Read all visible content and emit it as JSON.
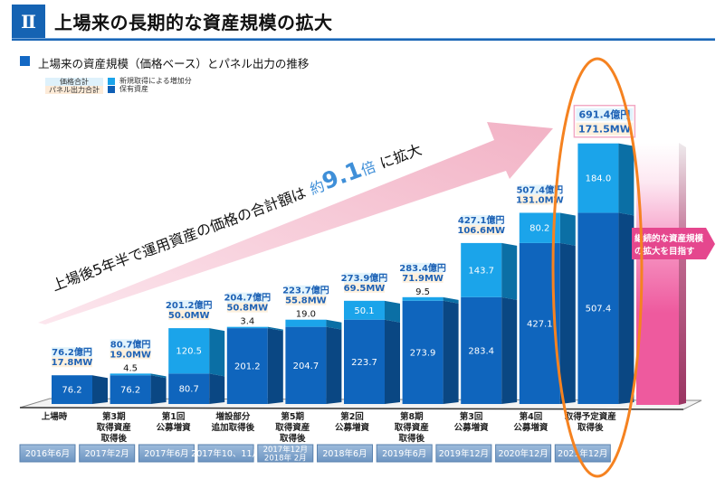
{
  "header": {
    "section_number": "Ⅱ",
    "title": "上場来の長期的な資産規模の拡大"
  },
  "legend": {
    "price_total": "価格合計",
    "panel_output_total": "パネル出力合計",
    "new_acquisition": "新規取得による増加分",
    "held_assets": "保有資産"
  },
  "growth_arrow": {
    "prefix": "上場後5年半で運用資産の価格の合計額は",
    "approx": "約",
    "multiple": "9.1",
    "unit": "倍",
    "suffix": "に拡大"
  },
  "target_callout": {
    "line1": "継続的な資産規模",
    "line2": "の拡大を目指す"
  },
  "colors": {
    "brand_blue": "#1563b3",
    "held_front": "#0f65bd",
    "held_side": "#0a4783",
    "new_front": "#1ba4ea",
    "new_side": "#0b6fa5",
    "price_box_bg": "#e1f3fc",
    "mw_box_bg": "#fdf0dd",
    "total_label_text": "#1e62b5",
    "highlight_box_border": "#f2a9c4",
    "target_pink": "#ee5a9e",
    "callout_pink": "#e5478e",
    "highlight_orange": "#f58220",
    "arrow_pink": "#f2b2c5",
    "multiple_blue": "#3f8fd8",
    "date_box": "#7aa0c8"
  },
  "chart_data": {
    "type": "bar",
    "stacked": true,
    "title": "上場来の資産規模（価格ベース）とパネル出力の推移",
    "xlabel": "",
    "ylabel": "",
    "unit": "億円",
    "grid": false,
    "legend_position": "top-left",
    "categories": [
      [
        "上場時"
      ],
      [
        "第3期",
        "取得資産",
        "取得後"
      ],
      [
        "第1回",
        "公募増資"
      ],
      [
        "増設部分",
        "追加取得後"
      ],
      [
        "第5期",
        "取得資産",
        "取得後"
      ],
      [
        "第2回",
        "公募増資"
      ],
      [
        "第8期",
        "取得資産",
        "取得後"
      ],
      [
        "第3回",
        "公募増資"
      ],
      [
        "第4回",
        "公募増資"
      ],
      [
        "取得予定資産",
        "取得後"
      ]
    ],
    "dates": [
      [
        "2016年6月"
      ],
      [
        "2017年2月"
      ],
      [
        "2017年6月"
      ],
      [
        "2017年10、11月"
      ],
      [
        "2017年12月",
        "2018年 2月"
      ],
      [
        "2018年6月"
      ],
      [
        "2019年6月"
      ],
      [
        "2019年12月"
      ],
      [
        "2020年12月"
      ],
      [
        "2021年12月"
      ]
    ],
    "series": [
      {
        "name": "保有資産",
        "values": [
          76.2,
          76.2,
          80.7,
          201.2,
          204.7,
          223.7,
          273.9,
          283.4,
          427.1,
          507.4
        ]
      },
      {
        "name": "新規取得による増加分",
        "values": [
          0,
          4.5,
          120.5,
          3.4,
          19.0,
          50.1,
          9.5,
          143.7,
          80.2,
          184.0
        ]
      }
    ],
    "total_price_labels": [
      "76.2億円",
      "80.7億円",
      "201.2億円",
      "204.7億円",
      "223.7億円",
      "273.9億円",
      "283.4億円",
      "427.1億円",
      "507.4億円",
      "691.4億円"
    ],
    "total_mw_labels": [
      "17.8MW",
      "19.0MW",
      "50.0MW",
      "50.8MW",
      "55.8MW",
      "69.5MW",
      "71.9MW",
      "106.6MW",
      "131.0MW",
      "171.5MW"
    ],
    "highlighted_index": 9,
    "ylim": [
      0,
      700
    ]
  }
}
